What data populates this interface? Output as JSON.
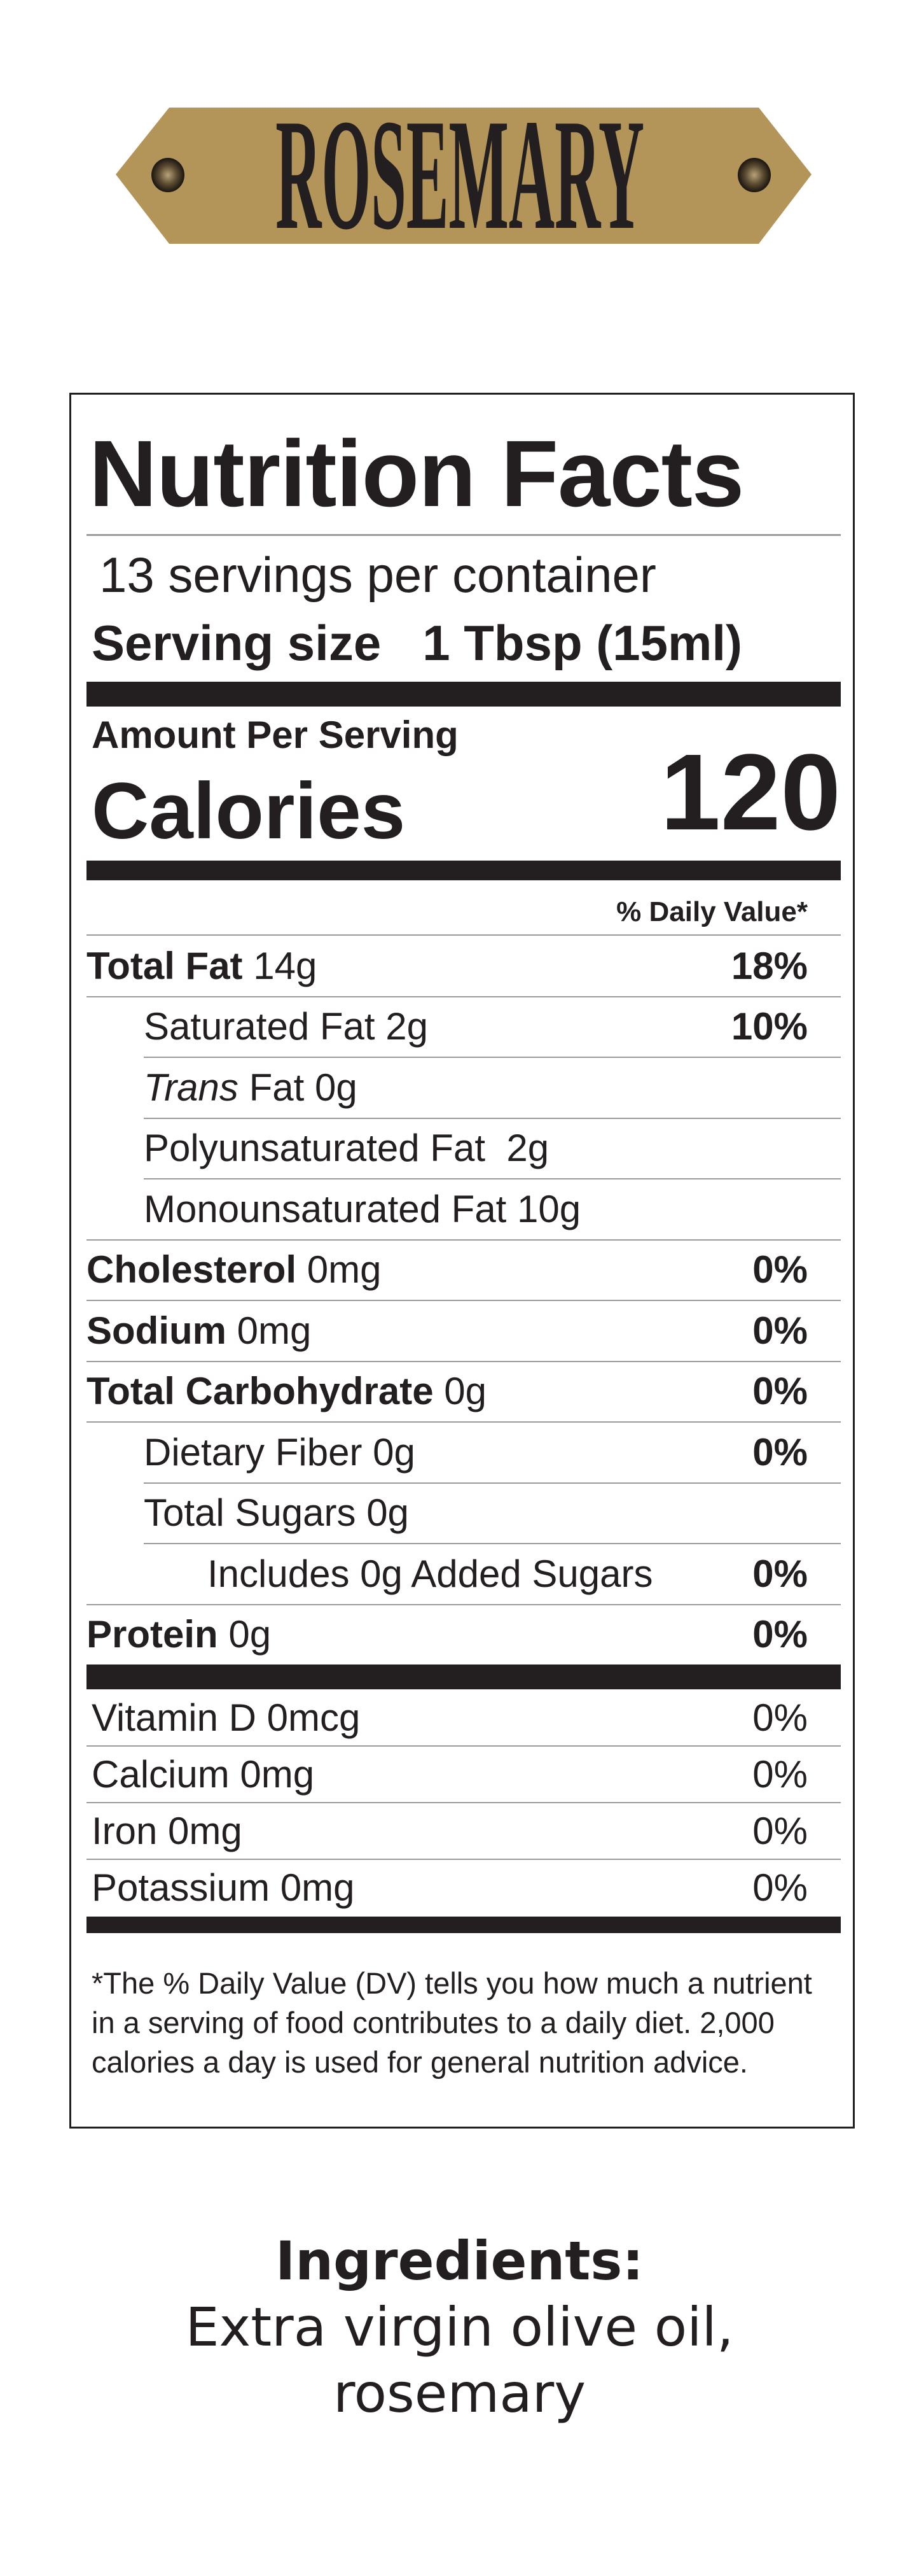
{
  "product": {
    "name": "ROSEMARY",
    "banner_color": "#b3955a"
  },
  "nutrition": {
    "title": "Nutrition Facts",
    "servings": "13 servings per container",
    "serving_size_label": "Serving size",
    "serving_size_value": "1 Tbsp (15ml)",
    "amount_per_serving": "Amount Per Serving",
    "calories_label": "Calories",
    "calories_value": "120",
    "daily_value_header": "% Daily Value*",
    "rows": [
      {
        "label": "Total Fat",
        "amount": "14g",
        "pct": "18%",
        "bold": true,
        "indent": 0
      },
      {
        "label": "Saturated Fat",
        "amount": "2g",
        "pct": "10%",
        "bold": false,
        "indent": 1
      },
      {
        "label": "Trans",
        "amount": "Fat 0g",
        "pct": "",
        "bold": false,
        "indent": 1,
        "italic": true
      },
      {
        "label": "Polyunsaturated Fat",
        "amount": " 2g",
        "pct": "",
        "bold": false,
        "indent": 1
      },
      {
        "label": "Monounsaturated Fat",
        "amount": "10g",
        "pct": "",
        "bold": false,
        "indent": 1
      },
      {
        "label": "Cholesterol",
        "amount": "0mg",
        "pct": "0%",
        "bold": true,
        "indent": 0
      },
      {
        "label": "Sodium",
        "amount": "0mg",
        "pct": "0%",
        "bold": true,
        "indent": 0
      },
      {
        "label": "Total Carbohydrate",
        "amount": "0g",
        "pct": "0%",
        "bold": true,
        "indent": 0
      },
      {
        "label": "Dietary Fiber",
        "amount": "0g",
        "pct": "0%",
        "bold": false,
        "indent": 1
      },
      {
        "label": "Total Sugars",
        "amount": "0g",
        "pct": "",
        "bold": false,
        "indent": 1
      },
      {
        "label": "Includes 0g Added Sugars",
        "amount": "",
        "pct": "0%",
        "bold": false,
        "indent": 2
      },
      {
        "label": "Protein",
        "amount": "0g",
        "pct": "0%",
        "bold": true,
        "indent": 0
      }
    ],
    "vitamins": [
      {
        "label": "Vitamin D 0mcg",
        "pct": "0%"
      },
      {
        "label": "Calcium 0mg",
        "pct": "0%"
      },
      {
        "label": "Iron 0mg",
        "pct": "0%"
      },
      {
        "label": "Potassium 0mg",
        "pct": "0%"
      }
    ],
    "footnote": "*The % Daily Value (DV) tells you how much a nutrient in a serving of food contributes to a daily diet. 2,000 calories a day is used for general nutrition advice."
  },
  "ingredients": {
    "title": "Ingredients:",
    "text_line1": "Extra virgin olive oil,",
    "text_line2": "rosemary"
  }
}
